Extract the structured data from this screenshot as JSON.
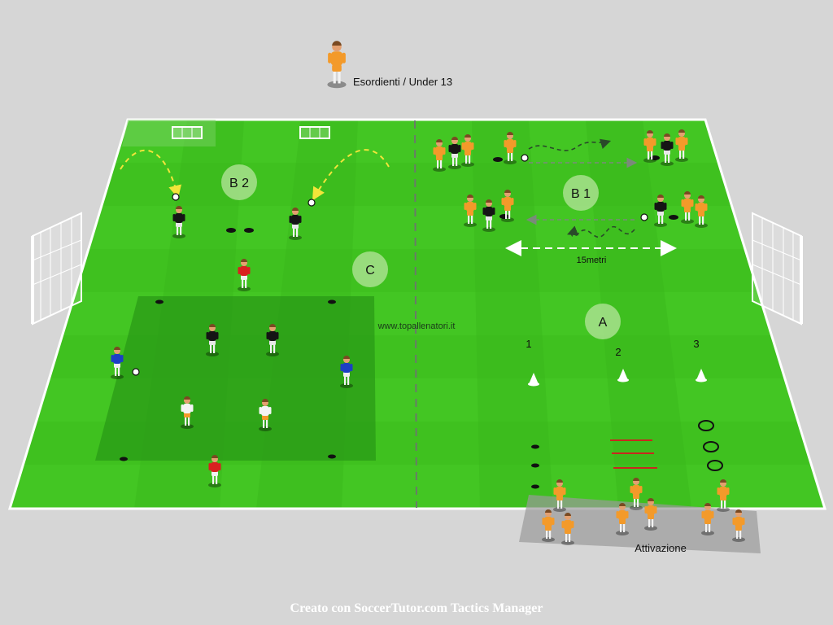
{
  "header": {
    "category_label": "Esordienti / Under 13"
  },
  "zones": {
    "b2": "B 2",
    "b1": "B 1",
    "c": "C",
    "a": "A"
  },
  "station_numbers": [
    "1",
    "2",
    "3"
  ],
  "distance_label": "15metri",
  "watermark": "www.topallenatori.it",
  "warmup_label": "Attivazione",
  "footer": "Creato con SoccerTutor.com Tactics Manager",
  "colors": {
    "background": "#d6d6d6",
    "pitch": "#3fc11f",
    "pitch_alt": "#37b51a",
    "pitch_dark": "#2a9a17",
    "player_orange": "#f39a2a",
    "player_black": "#151515",
    "player_red": "#d92020",
    "player_blue": "#1d3fc4",
    "player_white": "#f4f4f4",
    "zone_badge": "#a8e08e",
    "arrow_yellow": "#f2e53a"
  },
  "icons": [
    "goal-icon",
    "mini-goal-icon",
    "cone-icon",
    "disc-marker-icon",
    "ring-icon",
    "ball-icon",
    "player-icon"
  ]
}
